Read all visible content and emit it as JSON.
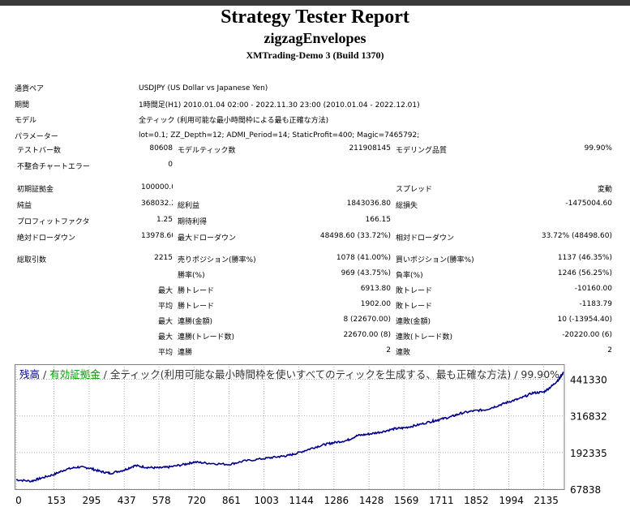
{
  "header": {
    "title": "Strategy Tester Report",
    "expert": "zigzagEnvelopes",
    "server": "XMTrading-Demo 3 (Build 1370)"
  },
  "info": [
    {
      "label": "通貨ペア",
      "value": "USDJPY (US Dollar vs Japanese Yen)"
    },
    {
      "label": "期間",
      "value": "1時間足(H1) 2010.01.04 02:00 - 2022.11.30 23:00 (2010.01.04 - 2022.12.01)"
    },
    {
      "label": "モデル",
      "value": "全ティック (利用可能な最小時間枠による最も正確な方法)"
    },
    {
      "label": "パラメーター",
      "value": "lot=0.1; ZZ_Depth=12; ADMI_Period=14; StaticProfit=400; Magic=7465792;"
    }
  ],
  "stats": {
    "bars_label": "テストバー数",
    "bars": "80608",
    "ticks_label": "モデルティック数",
    "ticks": "211908145",
    "quality_label": "モデリング品質",
    "quality": "99.90%",
    "mismatch_label": "不整合チャートエラー",
    "mismatch": "0",
    "deposit_label": "初期証拠金",
    "deposit": "100000.00",
    "spread_label": "スプレッド",
    "spread": "変動",
    "net_label": "純益",
    "net": "368032.20",
    "gross_profit_label": "総利益",
    "gross_profit": "1843036.80",
    "gross_loss_label": "総損失",
    "gross_loss": "-1475004.60",
    "pf_label": "プロフィットファクタ",
    "pf": "1.25",
    "payoff_label": "期待利得",
    "payoff": "166.15",
    "abs_dd_label": "絶対ドローダウン",
    "abs_dd": "13978.60",
    "max_dd_label": "最大ドローダウン",
    "max_dd": "48498.60 (33.72%)",
    "rel_dd_label": "相対ドローダウン",
    "rel_dd": "33.72% (48498.60)",
    "total_trades_label": "総取引数",
    "total_trades": "2215",
    "short_label": "売りポジション(勝率%)",
    "short": "1078 (41.00%)",
    "long_label": "買いポジション(勝率%)",
    "long": "1137 (46.35%)",
    "win_pct_label": "勝率(%)",
    "win_pct": "969 (43.75%)",
    "loss_pct_label": "負率(%)",
    "loss_pct": "1246 (56.25%)",
    "max_label": "最大",
    "avg_label": "平均",
    "win_trade_label": "勝トレード",
    "loss_trade_label": "敗トレード",
    "max_win": "6913.80",
    "max_loss": "-10160.00",
    "avg_win": "1902.00",
    "avg_loss": "-1183.79",
    "consec_win_money_label": "連勝(金額)",
    "consec_win_money": "8 (22670.00)",
    "consec_loss_money_label": "連敗(金額)",
    "consec_loss_money": "10 (-13954.40)",
    "consec_win_count_label": "連勝(トレード数)",
    "consec_win_count": "22670.00 (8)",
    "consec_loss_count_label": "連敗(トレード数)",
    "consec_loss_count": "-20220.00 (6)",
    "avg_consec_win_label": "連勝",
    "avg_consec_win": "2",
    "avg_consec_loss_label": "連敗",
    "avg_consec_loss": "2"
  },
  "chart_legend": {
    "balance": "残高",
    "sep1": " / ",
    "equity": "有効証拠金",
    "rest": " / 全ティック(利用可能な最小時間枠を使いすべてのティックを生成する、最も正確な方法) / 99.90%"
  },
  "colors": {
    "balance": "#00008b",
    "equity": "#00a000",
    "grid": "#9a9a9a"
  },
  "chart_data": {
    "type": "line",
    "x_ticks": [
      0,
      153,
      295,
      437,
      578,
      720,
      861,
      1003,
      1144,
      1286,
      1428,
      1569,
      1711,
      1852,
      1994,
      2135
    ],
    "y_ticks": [
      67838,
      192335,
      316832,
      441330
    ],
    "xlim": [
      0,
      2215
    ],
    "ylim": [
      67838,
      465000
    ],
    "series": [
      {
        "x": [
          0,
          60,
          100,
          153,
          200,
          250,
          295,
          340,
          380,
          437,
          480,
          530,
          578,
          620,
          680,
          720,
          780,
          861,
          920,
          1003,
          1060,
          1100,
          1144,
          1200,
          1250,
          1286,
          1340,
          1380,
          1428,
          1480,
          1530,
          1569,
          1620,
          1680,
          1711,
          1760,
          1800,
          1852,
          1900,
          1950,
          1994,
          2040,
          2090,
          2135,
          2170,
          2200,
          2215
        ],
        "y": [
          100000,
          95000,
          105000,
          118000,
          135000,
          143000,
          140000,
          128000,
          122000,
          133000,
          148000,
          142000,
          140000,
          143000,
          152000,
          160000,
          156000,
          152000,
          163000,
          172000,
          178000,
          182000,
          192000,
          208000,
          220000,
          226000,
          234000,
          250000,
          255000,
          263000,
          273000,
          276000,
          285000,
          298000,
          304000,
          314000,
          326000,
          334000,
          338000,
          352000,
          365000,
          376000,
          395000,
          398000,
          420000,
          445000,
          466000
        ]
      }
    ]
  }
}
